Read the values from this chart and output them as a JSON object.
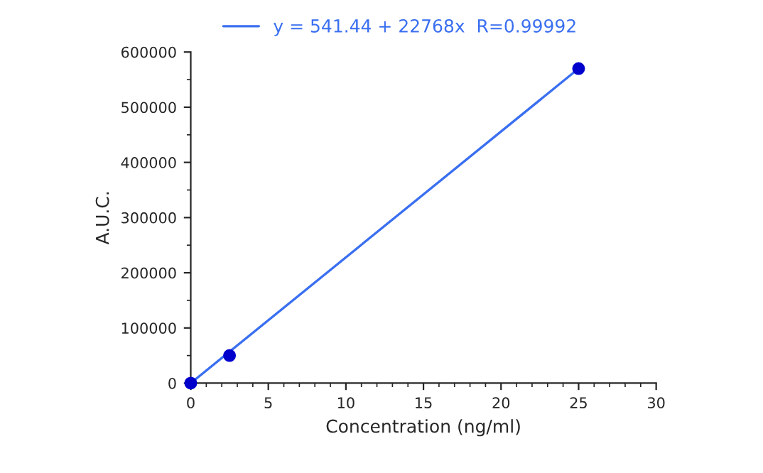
{
  "chart_data": {
    "type": "scatter",
    "xlabel": "Concentration (ng/ml)",
    "ylabel": "A.U.C.",
    "xlim": [
      0,
      30
    ],
    "xticks": [
      0,
      5,
      10,
      15,
      20,
      25,
      30
    ],
    "ylim": [
      0,
      600000
    ],
    "yticks": [
      0,
      100000,
      200000,
      300000,
      400000,
      500000,
      600000
    ],
    "series": [
      {
        "type": "line",
        "name": "y = 541.44 + 22768x  R=0.99992",
        "color": "#3a6ff0",
        "x": [
          0,
          25
        ],
        "values": [
          0,
          570000
        ]
      },
      {
        "color": "#0000cc",
        "marker": "circle",
        "x": [
          0,
          2.5,
          25
        ],
        "values": [
          0,
          50000,
          570000
        ]
      }
    ],
    "legend": "top",
    "grid": false
  }
}
